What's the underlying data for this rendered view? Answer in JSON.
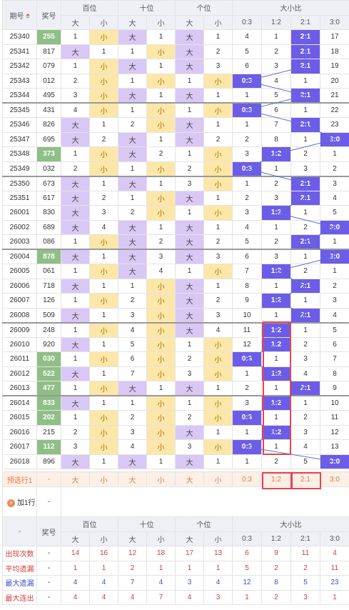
{
  "header": {
    "period": "期号",
    "draw": "奖号",
    "groups": [
      "百位",
      "十位",
      "个位",
      "大小比"
    ],
    "bigSmall": [
      "大",
      "小",
      "大",
      "小",
      "大",
      "小"
    ],
    "ratios": [
      "0:3",
      "1:2",
      "2:1",
      "3:0"
    ]
  },
  "rows": [
    {
      "id": "25340",
      "draw": "255",
      "hl": true,
      "c": [
        "1",
        "小",
        "大",
        "1",
        "大",
        "1",
        "4",
        "1",
        "2:1",
        "17"
      ],
      "r": 2
    },
    {
      "id": "25341",
      "draw": "817",
      "hl": false,
      "c": [
        "大",
        "1",
        "1",
        "小",
        "大",
        "2",
        "5",
        "2",
        "2:1",
        "18"
      ],
      "r": 2
    },
    {
      "id": "25342",
      "draw": "079",
      "hl": false,
      "c": [
        "1",
        "小",
        "大",
        "1",
        "大",
        "3",
        "6",
        "3",
        "2:1",
        "19"
      ],
      "r": 2
    },
    {
      "id": "25343",
      "draw": "012",
      "hl": false,
      "c": [
        "2",
        "小",
        "1",
        "小",
        "1",
        "小",
        "0:3",
        "4",
        "1",
        "20"
      ],
      "r": 0
    },
    {
      "id": "25344",
      "draw": "495",
      "hl": false,
      "c": [
        "3",
        "小",
        "大",
        "1",
        "大",
        "1",
        "1",
        "5",
        "2:1",
        "21"
      ],
      "r": 2
    },
    {
      "id": "25345",
      "draw": "431",
      "hl": false,
      "c": [
        "4",
        "小",
        "1",
        "小",
        "1",
        "小",
        "0:3",
        "6",
        "1",
        "22"
      ],
      "r": 0,
      "g": true
    },
    {
      "id": "25346",
      "draw": "826",
      "hl": false,
      "c": [
        "大",
        "1",
        "2",
        "小",
        "大",
        "1",
        "1",
        "7",
        "2:1",
        "23"
      ],
      "r": 2
    },
    {
      "id": "25347",
      "draw": "695",
      "hl": false,
      "c": [
        "大",
        "2",
        "大",
        "1",
        "大",
        "2",
        "2",
        "8",
        "1",
        "3:0"
      ],
      "r": 3
    },
    {
      "id": "25348",
      "draw": "373",
      "hl": true,
      "c": [
        "1",
        "小",
        "大",
        "2",
        "1",
        "小",
        "3",
        "1:2",
        "2",
        "1"
      ],
      "r": 1
    },
    {
      "id": "25349",
      "draw": "032",
      "hl": false,
      "c": [
        "2",
        "小",
        "1",
        "小",
        "2",
        "小",
        "0:3",
        "1",
        "3",
        "2"
      ],
      "r": 0
    },
    {
      "id": "25350",
      "draw": "673",
      "hl": false,
      "c": [
        "大",
        "1",
        "大",
        "1",
        "3",
        "小",
        "1",
        "2",
        "2:1",
        "3"
      ],
      "r": 2,
      "g": true
    },
    {
      "id": "25351",
      "draw": "617",
      "hl": false,
      "c": [
        "大",
        "2",
        "1",
        "小",
        "大",
        "1",
        "2",
        "3",
        "2:1",
        "4"
      ],
      "r": 2
    },
    {
      "id": "26001",
      "draw": "830",
      "hl": false,
      "c": [
        "大",
        "3",
        "2",
        "小",
        "1",
        "小",
        "3",
        "1:2",
        "1",
        "5"
      ],
      "r": 1
    },
    {
      "id": "26002",
      "draw": "689",
      "hl": false,
      "c": [
        "大",
        "4",
        "大",
        "1",
        "大",
        "1",
        "4",
        "1",
        "2",
        "3:0"
      ],
      "r": 3
    },
    {
      "id": "26003",
      "draw": "086",
      "hl": false,
      "c": [
        "1",
        "小",
        "大",
        "2",
        "大",
        "2",
        "5",
        "2",
        "2:1",
        "1"
      ],
      "r": 2
    },
    {
      "id": "26004",
      "draw": "878",
      "hl": true,
      "c": [
        "大",
        "1",
        "大",
        "3",
        "大",
        "3",
        "6",
        "3",
        "1",
        "3:0"
      ],
      "r": 3,
      "g": true
    },
    {
      "id": "26005",
      "draw": "061",
      "hl": false,
      "c": [
        "1",
        "小",
        "大",
        "4",
        "1",
        "小",
        "7",
        "1:2",
        "2",
        "1"
      ],
      "r": 1
    },
    {
      "id": "26006",
      "draw": "718",
      "hl": false,
      "c": [
        "大",
        "1",
        "1",
        "小",
        "大",
        "1",
        "8",
        "1",
        "2:1",
        "2"
      ],
      "r": 2
    },
    {
      "id": "26007",
      "draw": "126",
      "hl": false,
      "c": [
        "1",
        "小",
        "2",
        "小",
        "大",
        "2",
        "9",
        "1:2",
        "1",
        "3"
      ],
      "r": 1
    },
    {
      "id": "26008",
      "draw": "509",
      "hl": false,
      "c": [
        "大",
        "1",
        "3",
        "小",
        "大",
        "3",
        "10",
        "1",
        "2:1",
        "4"
      ],
      "r": 2
    },
    {
      "id": "26009",
      "draw": "248",
      "hl": false,
      "c": [
        "1",
        "小",
        "4",
        "小",
        "大",
        "4",
        "11",
        "1:2",
        "1",
        "5"
      ],
      "r": 1,
      "g": true
    },
    {
      "id": "26010",
      "draw": "920",
      "hl": false,
      "c": [
        "大",
        "1",
        "5",
        "小",
        "1",
        "小",
        "12",
        "1:2",
        "2",
        "6"
      ],
      "r": 1
    },
    {
      "id": "26011",
      "draw": "030",
      "hl": true,
      "c": [
        "1",
        "小",
        "6",
        "小",
        "2",
        "小",
        "0:3",
        "1",
        "3",
        "7"
      ],
      "r": 0
    },
    {
      "id": "26012",
      "draw": "522",
      "hl": true,
      "c": [
        "大",
        "1",
        "7",
        "小",
        "3",
        "小",
        "1",
        "1:2",
        "4",
        "8"
      ],
      "r": 1
    },
    {
      "id": "26013",
      "draw": "477",
      "hl": true,
      "c": [
        "1",
        "小",
        "大",
        "1",
        "大",
        "1",
        "2",
        "1",
        "2:1",
        "9"
      ],
      "r": 2
    },
    {
      "id": "26014",
      "draw": "833",
      "hl": true,
      "c": [
        "大",
        "1",
        "1",
        "小",
        "1",
        "小",
        "3",
        "1:2",
        "1",
        "10"
      ],
      "r": 1,
      "g": true
    },
    {
      "id": "26015",
      "draw": "202",
      "hl": true,
      "c": [
        "1",
        "小",
        "2",
        "小",
        "2",
        "小",
        "0:3",
        "1",
        "2",
        "11"
      ],
      "r": 0
    },
    {
      "id": "26016",
      "draw": "215",
      "hl": false,
      "c": [
        "2",
        "小",
        "3",
        "小",
        "大",
        "1",
        "1",
        "1:2",
        "3",
        "12"
      ],
      "r": 1
    },
    {
      "id": "26017",
      "draw": "112",
      "hl": true,
      "c": [
        "3",
        "小",
        "4",
        "小",
        "3",
        "小",
        "0:3",
        "1",
        "4",
        "13"
      ],
      "r": 0
    },
    {
      "id": "26018",
      "draw": "896",
      "hl": false,
      "c": [
        "大",
        "1",
        "大",
        "1",
        "大",
        "1",
        "1",
        "2",
        "5",
        "3:0"
      ],
      "r": 3
    }
  ],
  "predict": {
    "label": "预选行1",
    "draw": "-",
    "c": [
      "大",
      "小",
      "大",
      "小",
      "大",
      "小",
      "0:3",
      "1:2",
      "2:1",
      "3:0"
    ]
  },
  "add": {
    "label": "加1行",
    "draw": "-"
  },
  "footer": {
    "dash": "-",
    "draw": "奖号"
  },
  "stats": [
    {
      "label": "出现次数",
      "draw": "-",
      "cls": "red",
      "v": [
        "14",
        "16",
        "12",
        "18",
        "17",
        "13",
        "6",
        "9",
        "11",
        "4"
      ]
    },
    {
      "label": "平均遗漏",
      "draw": "-",
      "cls": "red",
      "v": [
        "1",
        "1",
        "2",
        "1",
        "1",
        "1",
        "5",
        "2",
        "2",
        "11"
      ]
    },
    {
      "label": "最大遗漏",
      "draw": "-",
      "cls": "blue",
      "v": [
        "4",
        "4",
        "7",
        "4",
        "3",
        "4",
        "12",
        "8",
        "5",
        "23"
      ]
    },
    {
      "label": "最大连出",
      "draw": "-",
      "cls": "red",
      "v": [
        "4",
        "4",
        "4",
        "7",
        "4",
        "3",
        "1",
        "2",
        "3",
        "1"
      ]
    }
  ],
  "colors": {
    "big": "#d9c8f5",
    "small": "#fde7a8",
    "ratio": "#6d5ce8",
    "highlight": "#8fbf86",
    "frame": "#e8444d"
  }
}
